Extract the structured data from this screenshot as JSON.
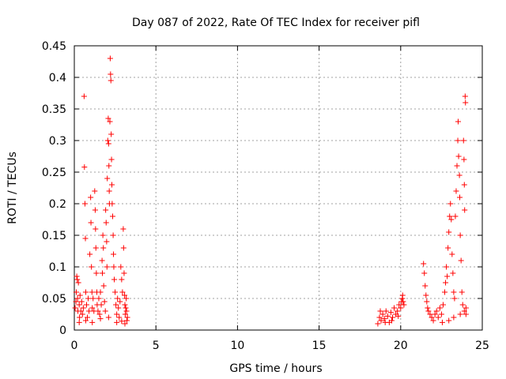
{
  "chart_data": {
    "type": "scatter",
    "title": "Day 087 of 2022, Rate Of TEC Index for receiver pifl",
    "xlabel": "GPS time / hours",
    "ylabel": "ROTI / TECUs",
    "xlim": [
      0,
      25
    ],
    "ylim": [
      0,
      0.45
    ],
    "x_ticks": [
      0,
      5,
      10,
      15,
      20,
      25
    ],
    "y_ticks": [
      0,
      0.05,
      0.1,
      0.15,
      0.2,
      0.25,
      0.3,
      0.35,
      0.4,
      0.45
    ],
    "x_tick_labels": [
      "0",
      "5",
      "10",
      "15",
      "20",
      "25"
    ],
    "y_tick_labels": [
      "0",
      "0.05",
      "0.1",
      "0.15",
      "0.2",
      "0.25",
      "0.3",
      "0.35",
      "0.4",
      "0.45"
    ],
    "grid": true,
    "marker": "+",
    "series": [
      {
        "name": "pifl",
        "color": "#ff0000",
        "points": [
          [
            0.05,
            0.035
          ],
          [
            0.1,
            0.045
          ],
          [
            0.12,
            0.06
          ],
          [
            0.15,
            0.085
          ],
          [
            0.18,
            0.08
          ],
          [
            0.2,
            0.05
          ],
          [
            0.22,
            0.03
          ],
          [
            0.25,
            0.075
          ],
          [
            0.3,
            0.04
          ],
          [
            0.32,
            0.02
          ],
          [
            0.35,
            0.055
          ],
          [
            0.4,
            0.03
          ],
          [
            0.45,
            0.045
          ],
          [
            0.5,
            0.025
          ],
          [
            0.55,
            0.035
          ],
          [
            0.6,
            0.37
          ],
          [
            0.62,
            0.258
          ],
          [
            0.65,
            0.2
          ],
          [
            0.68,
            0.145
          ],
          [
            0.7,
            0.06
          ],
          [
            0.75,
            0.04
          ],
          [
            0.8,
            0.02
          ],
          [
            0.85,
            0.05
          ],
          [
            0.9,
            0.03
          ],
          [
            0.95,
            0.12
          ],
          [
            1.0,
            0.21
          ],
          [
            1.02,
            0.17
          ],
          [
            1.05,
            0.1
          ],
          [
            1.08,
            0.06
          ],
          [
            1.1,
            0.035
          ],
          [
            1.15,
            0.05
          ],
          [
            1.2,
            0.03
          ],
          [
            1.25,
            0.22
          ],
          [
            1.28,
            0.19
          ],
          [
            1.3,
            0.16
          ],
          [
            1.32,
            0.13
          ],
          [
            1.35,
            0.09
          ],
          [
            1.38,
            0.06
          ],
          [
            1.4,
            0.04
          ],
          [
            1.45,
            0.03
          ],
          [
            1.5,
            0.05
          ],
          [
            1.55,
            0.025
          ],
          [
            1.6,
            0.06
          ],
          [
            1.65,
            0.04
          ],
          [
            1.7,
            0.11
          ],
          [
            1.72,
            0.09
          ],
          [
            1.75,
            0.15
          ],
          [
            1.78,
            0.13
          ],
          [
            1.8,
            0.07
          ],
          [
            1.85,
            0.045
          ],
          [
            1.9,
            0.03
          ],
          [
            1.92,
            0.19
          ],
          [
            1.95,
            0.17
          ],
          [
            1.98,
            0.14
          ],
          [
            2.0,
            0.1
          ],
          [
            2.02,
            0.24
          ],
          [
            2.05,
            0.3
          ],
          [
            2.08,
            0.335
          ],
          [
            2.1,
            0.295
          ],
          [
            2.12,
            0.26
          ],
          [
            2.14,
            0.22
          ],
          [
            2.15,
            0.2
          ],
          [
            2.18,
            0.33
          ],
          [
            2.2,
            0.43
          ],
          [
            2.22,
            0.405
          ],
          [
            2.24,
            0.395
          ],
          [
            2.26,
            0.31
          ],
          [
            2.28,
            0.27
          ],
          [
            2.3,
            0.23
          ],
          [
            2.32,
            0.2
          ],
          [
            2.35,
            0.18
          ],
          [
            2.38,
            0.15
          ],
          [
            2.4,
            0.12
          ],
          [
            2.42,
            0.1
          ],
          [
            2.45,
            0.08
          ],
          [
            2.5,
            0.06
          ],
          [
            2.55,
            0.04
          ],
          [
            2.6,
            0.025
          ],
          [
            2.65,
            0.05
          ],
          [
            2.7,
            0.035
          ],
          [
            2.75,
            0.02
          ],
          [
            2.8,
            0.045
          ],
          [
            2.85,
            0.1
          ],
          [
            2.9,
            0.08
          ],
          [
            2.95,
            0.06
          ],
          [
            3.0,
            0.16
          ],
          [
            3.02,
            0.13
          ],
          [
            3.05,
            0.09
          ],
          [
            3.08,
            0.055
          ],
          [
            3.1,
            0.04
          ],
          [
            3.12,
            0.025
          ],
          [
            3.15,
            0.035
          ],
          [
            3.18,
            0.05
          ],
          [
            3.2,
            0.03
          ],
          [
            3.22,
            0.015
          ],
          [
            3.25,
            0.02
          ],
          [
            0.3,
            0.012
          ],
          [
            0.7,
            0.015
          ],
          [
            1.1,
            0.012
          ],
          [
            1.6,
            0.018
          ],
          [
            2.1,
            0.02
          ],
          [
            2.6,
            0.012
          ],
          [
            2.9,
            0.014
          ],
          [
            3.1,
            0.01
          ],
          [
            18.6,
            0.01
          ],
          [
            18.7,
            0.02
          ],
          [
            18.8,
            0.015
          ],
          [
            18.9,
            0.025
          ],
          [
            19.0,
            0.018
          ],
          [
            19.1,
            0.03
          ],
          [
            19.2,
            0.022
          ],
          [
            19.3,
            0.012
          ],
          [
            19.4,
            0.028
          ],
          [
            19.5,
            0.02
          ],
          [
            19.6,
            0.035
          ],
          [
            19.7,
            0.025
          ],
          [
            19.8,
            0.03
          ],
          [
            19.9,
            0.04
          ],
          [
            20.0,
            0.035
          ],
          [
            20.05,
            0.045
          ],
          [
            20.1,
            0.05
          ],
          [
            20.12,
            0.055
          ],
          [
            20.15,
            0.045
          ],
          [
            20.2,
            0.04
          ],
          [
            18.75,
            0.03
          ],
          [
            19.05,
            0.012
          ],
          [
            19.45,
            0.015
          ],
          [
            19.85,
            0.022
          ],
          [
            21.4,
            0.105
          ],
          [
            21.45,
            0.09
          ],
          [
            21.5,
            0.07
          ],
          [
            21.55,
            0.055
          ],
          [
            21.6,
            0.045
          ],
          [
            21.65,
            0.035
          ],
          [
            21.7,
            0.03
          ],
          [
            21.8,
            0.025
          ],
          [
            21.9,
            0.02
          ],
          [
            22.0,
            0.015
          ],
          [
            22.1,
            0.025
          ],
          [
            22.2,
            0.03
          ],
          [
            22.3,
            0.02
          ],
          [
            22.4,
            0.035
          ],
          [
            22.5,
            0.025
          ],
          [
            22.6,
            0.04
          ],
          [
            22.7,
            0.06
          ],
          [
            22.75,
            0.075
          ],
          [
            22.8,
            0.1
          ],
          [
            22.85,
            0.085
          ],
          [
            22.9,
            0.13
          ],
          [
            22.95,
            0.155
          ],
          [
            23.0,
            0.18
          ],
          [
            23.05,
            0.2
          ],
          [
            23.1,
            0.175
          ],
          [
            23.15,
            0.12
          ],
          [
            23.2,
            0.09
          ],
          [
            23.25,
            0.06
          ],
          [
            23.3,
            0.05
          ],
          [
            23.35,
            0.18
          ],
          [
            23.4,
            0.22
          ],
          [
            23.45,
            0.26
          ],
          [
            23.5,
            0.3
          ],
          [
            23.52,
            0.33
          ],
          [
            23.55,
            0.275
          ],
          [
            23.6,
            0.245
          ],
          [
            23.62,
            0.21
          ],
          [
            23.65,
            0.15
          ],
          [
            23.7,
            0.11
          ],
          [
            23.75,
            0.06
          ],
          [
            23.8,
            0.04
          ],
          [
            23.85,
            0.3
          ],
          [
            23.88,
            0.27
          ],
          [
            23.9,
            0.23
          ],
          [
            23.92,
            0.19
          ],
          [
            23.95,
            0.37
          ],
          [
            23.97,
            0.36
          ],
          [
            24.0,
            0.035
          ],
          [
            22.55,
            0.012
          ],
          [
            22.95,
            0.015
          ],
          [
            23.25,
            0.02
          ],
          [
            23.65,
            0.025
          ],
          [
            23.9,
            0.03
          ],
          [
            24.0,
            0.025
          ]
        ]
      }
    ]
  }
}
